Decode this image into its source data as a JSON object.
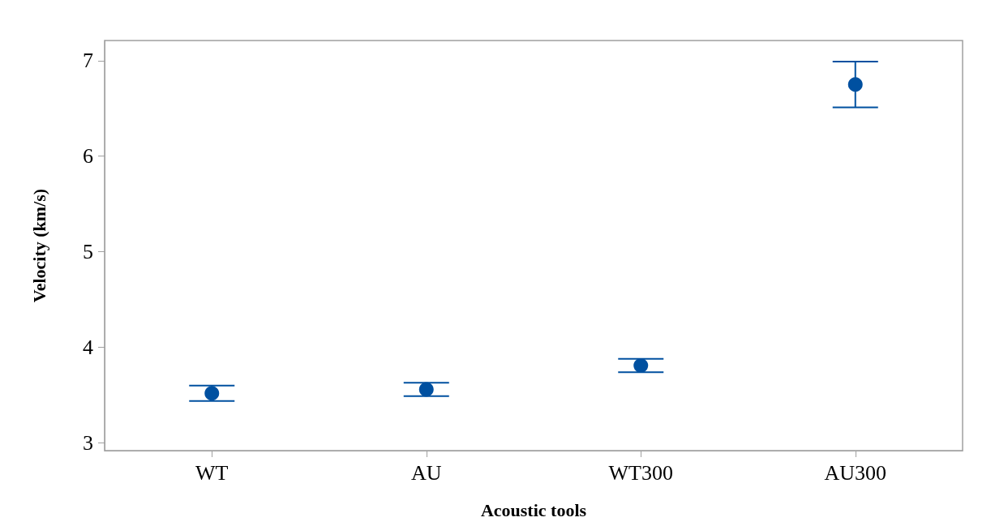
{
  "chart_data": {
    "type": "scatter",
    "xlabel": "Acoustic tools",
    "ylabel": "Velocity (km/s)",
    "categories": [
      "WT",
      "AU",
      "WT300",
      "AU300"
    ],
    "values": [
      3.52,
      3.56,
      3.81,
      6.75
    ],
    "errors": [
      [
        3.44,
        3.6
      ],
      [
        3.49,
        3.63
      ],
      [
        3.74,
        3.88
      ],
      [
        6.51,
        6.99
      ]
    ],
    "color": "#0050a0",
    "marker": "circle",
    "ylim": [
      2.92,
      7.21
    ],
    "yticks": [
      3,
      4,
      5,
      6,
      7
    ],
    "grid": false
  }
}
